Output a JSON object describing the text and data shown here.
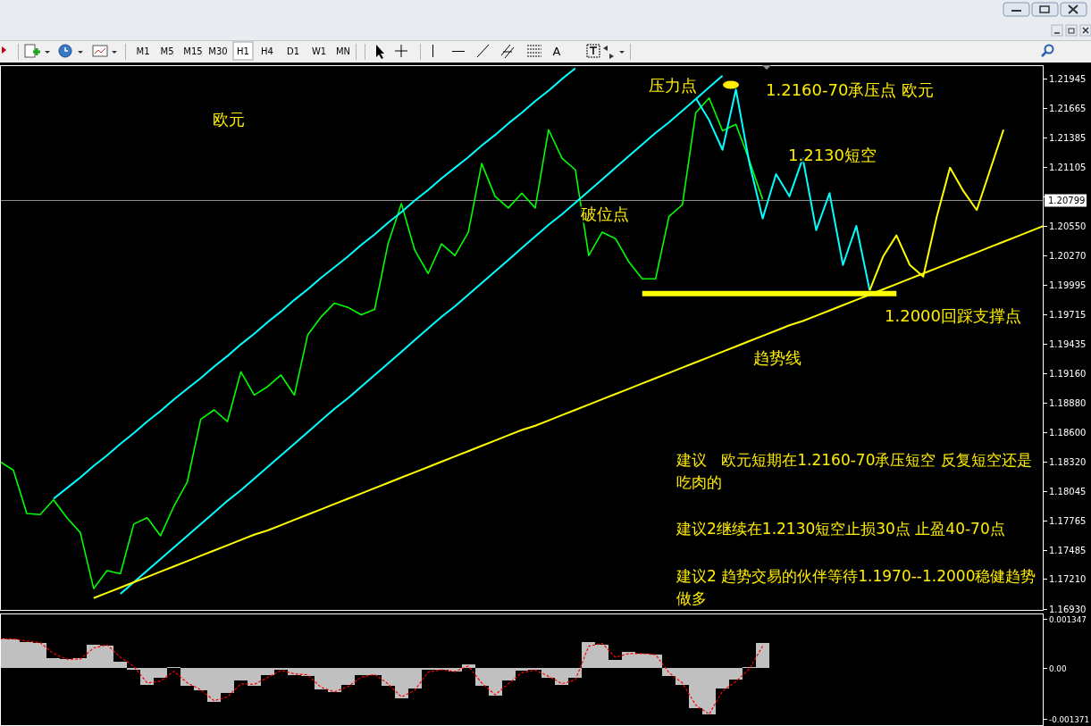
{
  "chart_data": [
    {
      "type": "line",
      "categories": [
        null,
        null,
        null,
        null,
        null,
        null,
        null,
        null,
        null,
        null,
        null,
        null,
        null,
        null,
        null,
        null,
        null,
        null,
        null,
        null,
        null,
        null,
        null,
        null,
        null,
        null,
        null,
        null,
        null,
        null,
        null,
        null,
        null,
        null,
        null,
        null,
        null,
        null,
        null,
        null,
        null,
        null,
        null,
        null,
        null,
        null,
        null,
        null,
        null,
        null,
        null,
        null,
        null,
        null,
        null,
        null,
        null,
        null,
        null,
        null,
        null,
        null,
        null,
        null,
        null,
        null,
        null,
        null,
        null,
        null,
        null,
        null,
        null,
        null,
        null,
        null,
        null,
        null,
        null
      ],
      "series": [
        {
          "color": "#00ff00",
          "values": [
            1.1832,
            1.1824,
            1.1783,
            1.1782,
            1.1796,
            1.1779,
            1.1765,
            1.1712,
            1.1729,
            1.1726,
            1.1773,
            1.1779,
            1.1762,
            1.179,
            1.1813,
            1.1872,
            1.1881,
            1.187,
            1.1917,
            1.1895,
            1.1903,
            1.1914,
            1.1895,
            1.1952,
            1.1969,
            1.1982,
            1.1978,
            1.1971,
            1.1976,
            1.2038,
            1.2076,
            1.2032,
            1.201,
            1.2038,
            1.2027,
            1.2049,
            1.2114,
            1.2083,
            1.2072,
            1.2086,
            1.2072,
            1.2146,
            1.2119,
            1.2108,
            1.2027,
            1.2049,
            1.2043,
            1.2021,
            1.2005,
            1.2005,
            1.2064,
            1.2075,
            1.2162,
            1.2176,
            1.2145,
            1.2151,
            1.2117,
            1.208,
            null,
            null,
            null,
            null,
            null,
            null,
            null,
            null,
            null,
            null,
            null,
            null,
            null,
            null,
            null,
            null,
            null,
            null,
            null,
            null,
            null
          ]
        },
        {
          "color": "#00ffff",
          "values": [
            null,
            null,
            null,
            null,
            1.1797,
            1.1807,
            1.1817,
            1.1828,
            1.1838,
            1.1849,
            1.1859,
            1.187,
            1.188,
            1.1891,
            1.1901,
            1.1911,
            1.1922,
            1.1932,
            1.1943,
            1.1953,
            1.1964,
            1.1974,
            1.1985,
            1.1995,
            1.2006,
            1.2016,
            1.2026,
            1.2037,
            1.2047,
            1.2058,
            1.2068,
            1.2079,
            1.2089,
            1.21,
            1.211,
            1.212,
            1.2131,
            1.2141,
            1.2152,
            1.2162,
            1.2173,
            1.2183,
            1.2194,
            1.2204,
            null,
            null,
            null,
            null,
            null,
            null,
            null,
            null,
            null,
            null,
            null,
            null,
            null,
            null,
            null,
            null,
            null,
            null,
            null,
            null,
            null,
            null,
            null,
            null,
            null,
            null,
            null,
            null,
            null,
            null,
            null,
            null,
            null,
            null,
            null
          ]
        },
        {
          "color": "#00ffff",
          "values": [
            null,
            null,
            null,
            null,
            null,
            null,
            null,
            null,
            null,
            1.1707,
            1.1718,
            1.1729,
            1.174,
            1.1751,
            1.1762,
            1.1773,
            1.1784,
            1.1795,
            1.1805,
            1.1816,
            1.1827,
            1.1838,
            1.1849,
            1.186,
            1.1871,
            1.1882,
            1.1892,
            1.1903,
            1.1914,
            1.1925,
            1.1936,
            1.1947,
            1.1958,
            1.1969,
            1.1979,
            1.199,
            1.2001,
            1.2012,
            1.2023,
            1.2034,
            1.2045,
            1.2056,
            1.2066,
            1.2077,
            1.2088,
            1.2099,
            1.211,
            1.2121,
            1.2132,
            1.2143,
            1.2153,
            1.2164,
            1.2175,
            1.2186,
            1.2197,
            null,
            null,
            null,
            null,
            null,
            null,
            null,
            null,
            null,
            null,
            null,
            null,
            null,
            null,
            null,
            null,
            null,
            null,
            null,
            null,
            null,
            null,
            null,
            null
          ]
        },
        {
          "color": "#ffff00",
          "values": [
            null,
            null,
            null,
            null,
            null,
            null,
            null,
            1.1703,
            1.1708,
            1.1713,
            1.1718,
            1.1723,
            1.1728,
            1.1733,
            1.1738,
            1.1743,
            1.1748,
            1.1753,
            1.1758,
            1.1763,
            1.1767,
            1.1772,
            1.1777,
            1.1782,
            1.1787,
            1.1792,
            1.1797,
            1.1802,
            1.1807,
            1.1812,
            1.1817,
            1.1822,
            1.1827,
            1.1832,
            1.1837,
            1.1842,
            1.1847,
            1.1852,
            1.1857,
            1.1862,
            1.1866,
            1.1871,
            1.1876,
            1.1881,
            1.1886,
            1.1891,
            1.1896,
            1.1901,
            1.1906,
            1.1911,
            1.1916,
            1.1921,
            1.1926,
            1.1931,
            1.1936,
            1.1941,
            1.1946,
            1.1951,
            1.1956,
            1.1961,
            1.1965,
            1.197,
            1.1975,
            1.198,
            1.1985,
            1.199,
            1.1995,
            1.2,
            1.2005,
            1.201,
            1.2015,
            1.202,
            1.2025,
            1.203,
            1.2035,
            1.204,
            1.2045,
            1.205,
            1.2055
          ]
        },
        {
          "color": "#ffff00",
          "values": [
            null,
            null,
            null,
            null,
            null,
            null,
            null,
            null,
            null,
            null,
            null,
            null,
            null,
            null,
            null,
            null,
            null,
            null,
            null,
            null,
            null,
            null,
            null,
            null,
            null,
            null,
            null,
            null,
            null,
            null,
            null,
            null,
            null,
            null,
            null,
            null,
            null,
            null,
            null,
            null,
            null,
            null,
            null,
            null,
            null,
            null,
            null,
            null,
            1.1991,
            1.1991,
            1.1991,
            1.1991,
            1.1991,
            1.1991,
            1.1991,
            1.1991,
            1.1991,
            1.1991,
            1.1991,
            1.1991,
            1.1991,
            1.1991,
            1.1991,
            1.1991,
            1.1991,
            1.1991,
            1.1991,
            1.1991,
            null,
            null,
            null,
            null,
            null,
            null,
            null,
            null,
            null,
            null,
            null
          ]
        },
        {
          "color": "#00ffff",
          "values": [
            null,
            null,
            null,
            null,
            null,
            null,
            null,
            null,
            null,
            null,
            null,
            null,
            null,
            null,
            null,
            null,
            null,
            null,
            null,
            null,
            null,
            null,
            null,
            null,
            null,
            null,
            null,
            null,
            null,
            null,
            null,
            null,
            null,
            null,
            null,
            null,
            null,
            null,
            null,
            null,
            null,
            null,
            null,
            null,
            null,
            null,
            null,
            null,
            null,
            null,
            null,
            null,
            1.2176,
            1.2155,
            1.2127,
            1.2184,
            1.2115,
            1.2062,
            1.2104,
            1.2083,
            1.2119,
            1.2051,
            1.2086,
            1.2018,
            1.2055,
            1.1994,
            null,
            null,
            null,
            null,
            null,
            null,
            null,
            null,
            null,
            null,
            null,
            null,
            null
          ]
        },
        {
          "color": "#ffff00",
          "values": [
            null,
            null,
            null,
            null,
            null,
            null,
            null,
            null,
            null,
            null,
            null,
            null,
            null,
            null,
            null,
            null,
            null,
            null,
            null,
            null,
            null,
            null,
            null,
            null,
            null,
            null,
            null,
            null,
            null,
            null,
            null,
            null,
            null,
            null,
            null,
            null,
            null,
            null,
            null,
            null,
            null,
            null,
            null,
            null,
            null,
            null,
            null,
            null,
            null,
            null,
            null,
            null,
            null,
            null,
            null,
            null,
            null,
            null,
            null,
            null,
            null,
            null,
            null,
            null,
            null,
            1.1994,
            1.2026,
            1.2046,
            1.2018,
            1.2007,
            1.2063,
            1.211,
            1.2088,
            1.207,
            1.2108,
            1.2146,
            null,
            null,
            null
          ]
        }
      ],
      "ylim": [
        1.1691,
        1.2207
      ],
      "yticks": [
        1.21945,
        1.21665,
        1.21385,
        1.21105,
        {
          "value": 1.2083,
          "label": null
        },
        {
          "value": 1.2055,
          "label": "1.20550"
        },
        {
          "value": 1.2027,
          "label": "1.20270"
        },
        1.19995,
        1.19715,
        1.19435,
        {
          "value": 1.1916,
          "label": "1.19160"
        },
        {
          "value": 1.1888,
          "label": "1.18880"
        },
        {
          "value": 1.186,
          "label": "1.18600"
        },
        {
          "value": 1.1832,
          "label": "1.18320"
        },
        1.18045,
        1.17765,
        1.17485,
        {
          "value": 1.1721,
          "label": "1.17210"
        },
        {
          "value": 1.1693,
          "label": "1.16930"
        }
      ],
      "tick_labels": "y",
      "ref_lines": [
        {
          "axis": "y",
          "value": 1.20799,
          "label": "1.20799",
          "color": "#8c8c8c"
        }
      ],
      "annotations": [
        "欧元",
        "压力点",
        "1.2160-70承压点 欧元",
        "1.2130短空",
        "破位点",
        "1.2000回踩支撑点",
        "趋势线",
        "建议   欧元短期在1.2160-70承压短空 反复短空还是吃肉的",
        "建议2继续在1.2130短空止损30点 止盈40-70点",
        "建议2 趋势交易的伙伴等待1.1970--1.2000稳健趋势做多",
        "M1",
        "M5",
        "M15",
        "M30",
        "H1",
        "H4",
        "D1",
        "W1",
        "MN",
        "A"
      ]
    },
    {
      "type": "bar",
      "categories": [
        null,
        null,
        null,
        null,
        null,
        null,
        null,
        null,
        null,
        null,
        null,
        null,
        null,
        null,
        null,
        null,
        null,
        null,
        null,
        null,
        null,
        null,
        null,
        null,
        null,
        null,
        null,
        null,
        null,
        null,
        null,
        null,
        null,
        null,
        null,
        null,
        null,
        null,
        null,
        null,
        null,
        null,
        null,
        null,
        null,
        null,
        null,
        null,
        null,
        null,
        null,
        null,
        null,
        null,
        null,
        null,
        null,
        null,
        null,
        null,
        null,
        null,
        null,
        null,
        null,
        null,
        null,
        null,
        null,
        null,
        null,
        null,
        null,
        null,
        null,
        null,
        null,
        null,
        null
      ],
      "series": [
        {
          "color": "#c0c0c0",
          "values": [
            0.00082,
            0.00079,
            0.00072,
            0.00068,
            0.00027,
            0.00024,
            0.00027,
            0.00064,
            0.00061,
            0.00018,
            -5e-05,
            -0.00045,
            -0.00027,
            4e-05,
            -0.00048,
            -0.00061,
            -0.00092,
            -0.00068,
            -0.00034,
            -0.00048,
            -0.00018,
            -3e-05,
            -0.00018,
            -0.0002,
            -0.00058,
            -0.00064,
            -0.00045,
            -0.00018,
            -0.00018,
            -0.00048,
            -0.00082,
            -0.00054,
            -4e-05,
            -4e-05,
            -0.0001,
            0.0001,
            -0.00048,
            -0.00075,
            -0.00034,
            -7e-05,
            -4e-05,
            -0.00027,
            -0.00045,
            -0.00027,
            0.00072,
            0.00064,
            0.00023,
            0.00044,
            0.00039,
            0.00037,
            -0.0002,
            -0.00045,
            -0.00109,
            -0.00126,
            -0.00054,
            -0.00031,
            4e-05,
            0.00068,
            null,
            null,
            null,
            null,
            null,
            null,
            null,
            null,
            null,
            null,
            null,
            null,
            null,
            null,
            null,
            null,
            null,
            null,
            null,
            null,
            null
          ]
        },
        {
          "type": "line",
          "color": "#ff0000",
          "line_style": "dashed",
          "values": [
            0.0008,
            0.0008,
            0.00074,
            0.0007,
            0.0004,
            0.00025,
            0.00025,
            0.00055,
            0.00064,
            0.0003,
            5e-05,
            -0.0004,
            -0.00035,
            -8e-05,
            -0.0004,
            -0.00058,
            -0.00088,
            -0.00078,
            -0.00042,
            -0.00044,
            -0.00025,
            -6e-05,
            -0.00015,
            -0.00018,
            -0.00052,
            -0.00064,
            -0.0005,
            -0.00024,
            -0.00017,
            -0.00042,
            -0.00078,
            -0.0006,
            -0.0001,
            -4e-05,
            -9e-05,
            6e-05,
            -0.0004,
            -0.00072,
            -0.00042,
            -0.00012,
            -5e-05,
            -0.00022,
            -0.00042,
            -0.00032,
            0.0006,
            0.00068,
            0.0003,
            0.0004,
            0.0004,
            0.00037,
            -0.00012,
            -0.0004,
            -0.001,
            -0.00125,
            -0.00062,
            -0.00036,
            -2e-05,
            0.0006,
            null,
            null,
            null,
            null,
            null,
            null,
            null,
            null,
            null,
            null,
            null,
            null,
            null,
            null,
            null,
            null,
            null,
            null,
            null,
            null,
            null
          ]
        }
      ],
      "ylim": [
        -0.00157,
        0.00149
      ],
      "yticks": [
        0.001347,
        {
          "value": 0,
          "label": "0.00"
        },
        -0.001371
      ],
      "tick_labels": "y"
    }
  ]
}
